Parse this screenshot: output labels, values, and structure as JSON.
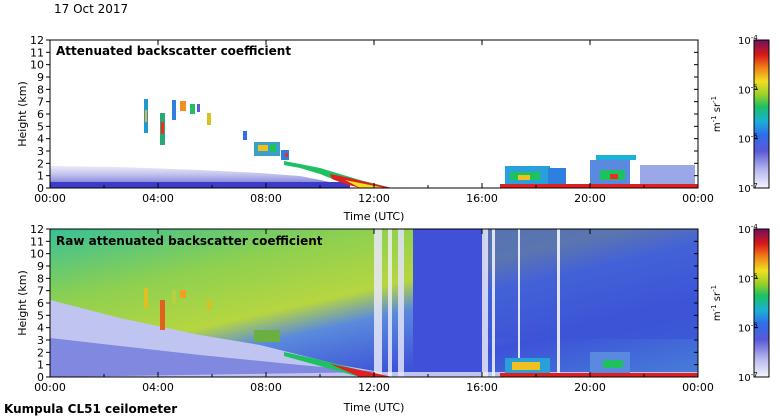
{
  "date": "17 Oct 2017",
  "footer": "Kumpula CL51 ceilometer",
  "chart_data": [
    {
      "type": "heatmap",
      "title": "Attenuated backscatter coefficient",
      "xlabel": "Time (UTC)",
      "ylabel": "Height (km)",
      "x_ticks": [
        "00:00",
        "04:00",
        "08:00",
        "12:00",
        "16:00",
        "20:00",
        "00:00"
      ],
      "y_ticks": [
        0,
        1,
        2,
        3,
        4,
        5,
        6,
        7,
        8,
        9,
        10,
        11,
        12
      ],
      "ylim": [
        0,
        12
      ],
      "xlim_hours": [
        0,
        24
      ],
      "colorbar": {
        "scale": "log",
        "labels": [
          "10^-4",
          "10^-5",
          "10^-6",
          "10^-7"
        ],
        "units": "m^-1 sr^-1"
      },
      "features": [
        {
          "kind": "boundary-layer",
          "hours": [
            0,
            11
          ],
          "height_km": [
            0,
            1.8
          ]
        },
        {
          "kind": "cloud",
          "hours": [
            3.6,
            6.0
          ],
          "height_km": [
            3.5,
            7.2
          ]
        },
        {
          "kind": "cloud",
          "hours": [
            7.1,
            9.2
          ],
          "height_km": [
            2.5,
            4.5
          ]
        },
        {
          "kind": "cloud-layer",
          "hours": [
            9.0,
            12.5
          ],
          "height_km": [
            0.2,
            2.0
          ]
        },
        {
          "kind": "low-cloud",
          "hours": [
            16.8,
            24
          ],
          "height_km": [
            0.2,
            2.8
          ]
        }
      ]
    },
    {
      "type": "heatmap",
      "title": "Raw attenuated backscatter coefficient",
      "xlabel": "Time (UTC)",
      "ylabel": "Height (km)",
      "x_ticks": [
        "00:00",
        "04:00",
        "08:00",
        "12:00",
        "16:00",
        "20:00",
        "00:00"
      ],
      "y_ticks": [
        0,
        1,
        2,
        3,
        4,
        5,
        6,
        7,
        8,
        9,
        10,
        11,
        12
      ],
      "ylim": [
        0,
        12
      ],
      "xlim_hours": [
        0,
        24
      ],
      "colorbar": {
        "scale": "log",
        "labels": [
          "10^-4",
          "10^-5",
          "10^-6",
          "10^-7"
        ],
        "units": "m^-1 sr^-1"
      }
    }
  ]
}
